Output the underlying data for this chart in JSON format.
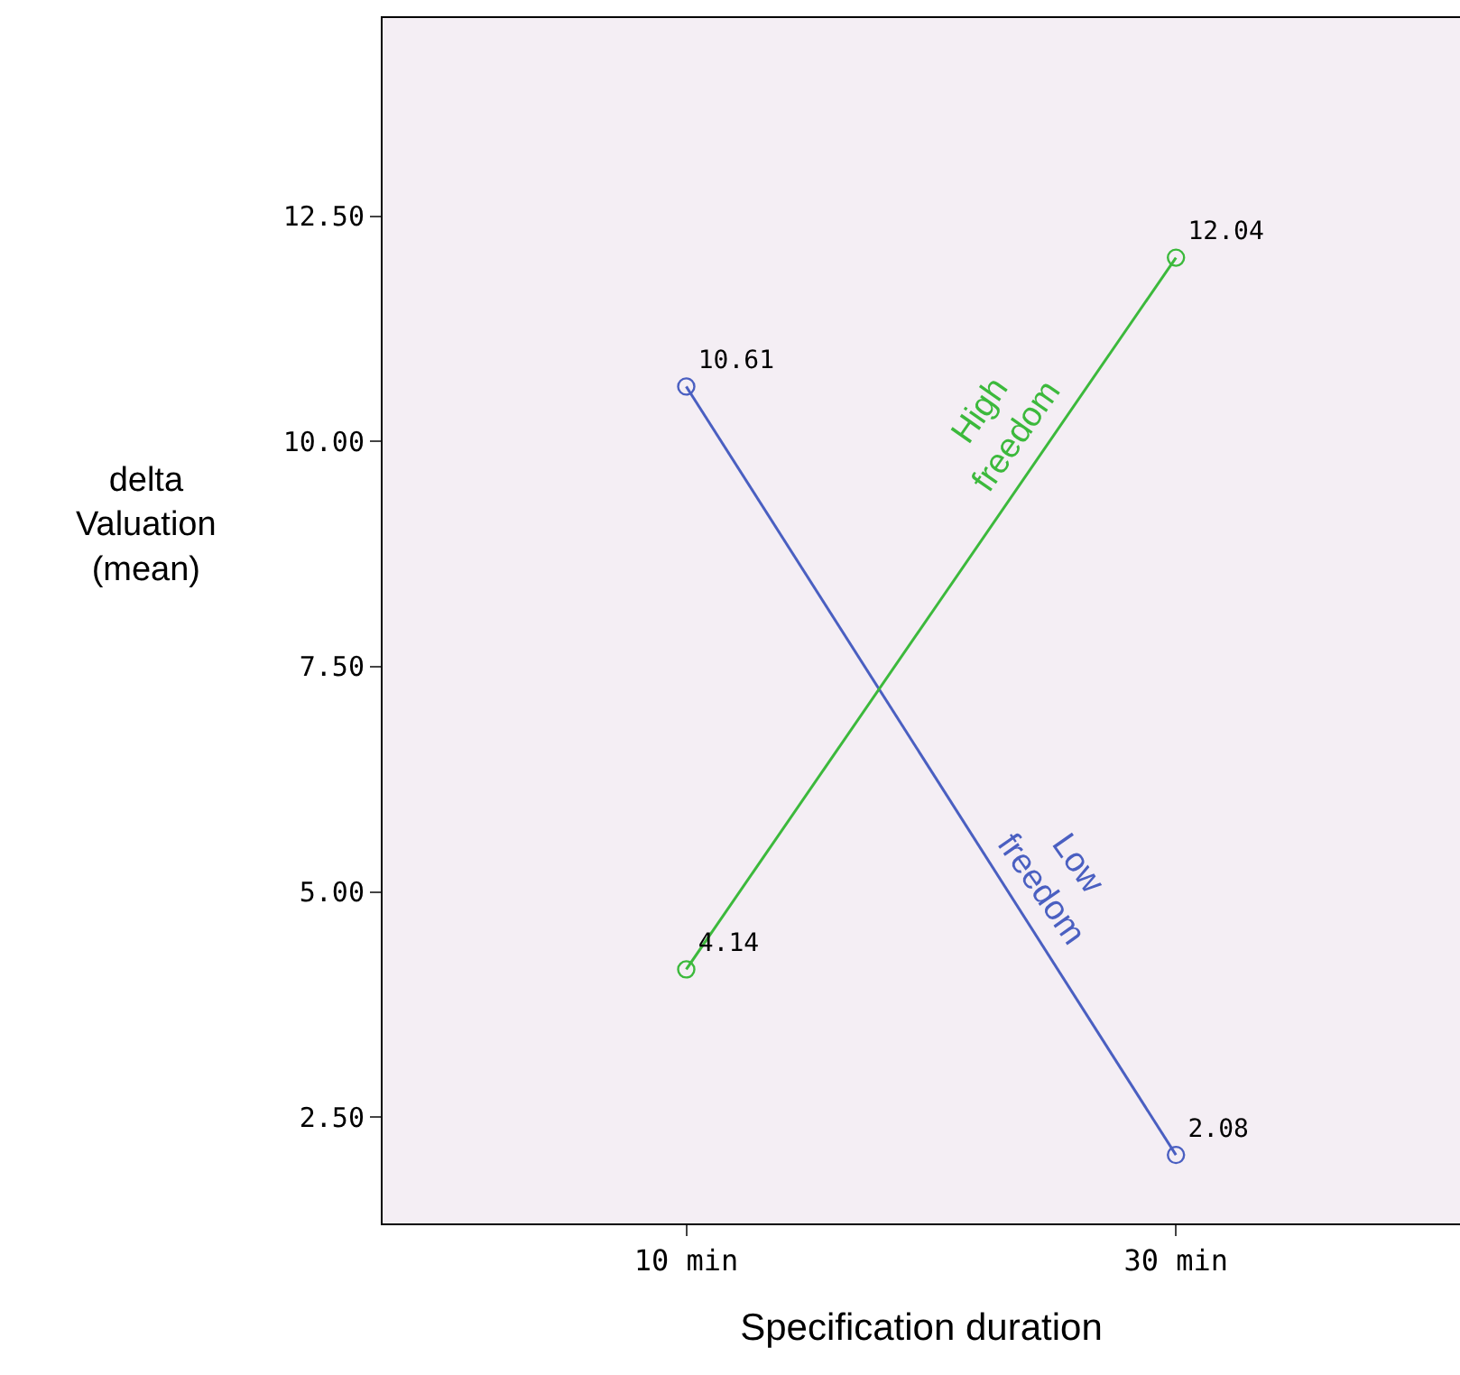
{
  "chart_data": {
    "type": "line",
    "xlabel": "Specification duration",
    "ylabel": "delta\nValuation\n(mean)",
    "categories": [
      "10 min",
      "30 min"
    ],
    "series": [
      {
        "name": "Low freedom",
        "color": "#4a5fc1",
        "values": [
          10.61,
          2.08
        ]
      },
      {
        "name": "High freedom",
        "color": "#3cb93c",
        "values": [
          4.14,
          12.04
        ]
      }
    ],
    "ylim": [
      1.32,
      14.7
    ],
    "yticks": [
      {
        "value": 2.5,
        "label": "2.50"
      },
      {
        "value": 5,
        "label": "5.00"
      },
      {
        "value": 7.5,
        "label": "7.50"
      },
      {
        "value": 10,
        "label": "10.00"
      },
      {
        "value": 12.5,
        "label": "12.50"
      }
    ],
    "data_labels": true,
    "marker": "circle",
    "line_style": "solid",
    "grid": false,
    "legend": false
  }
}
